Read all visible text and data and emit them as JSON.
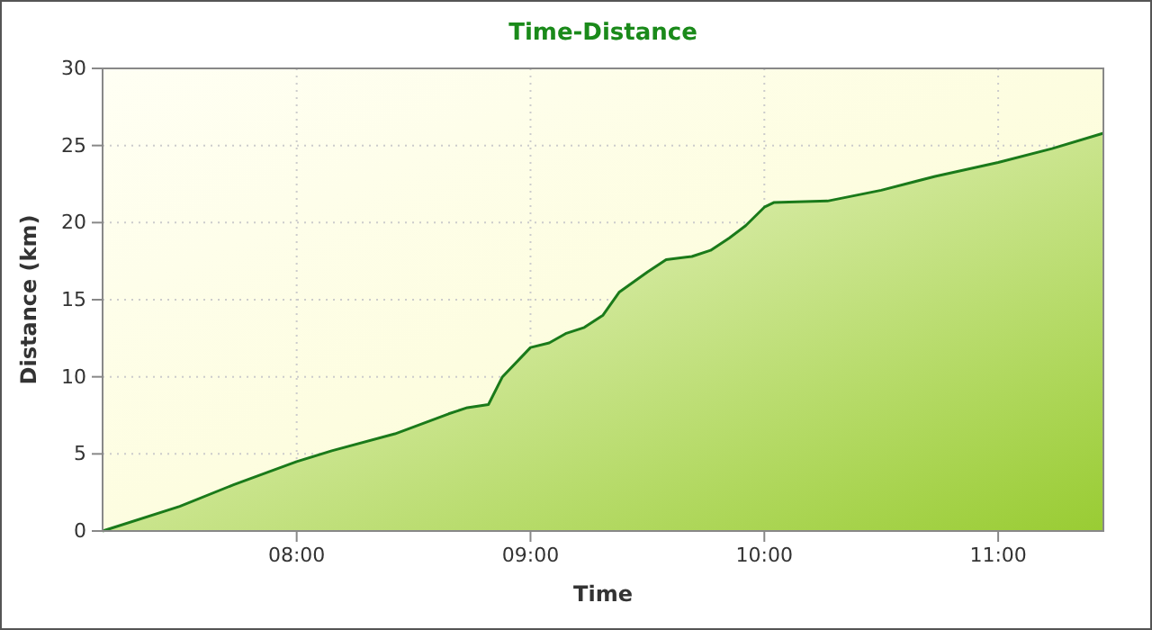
{
  "chart_data": {
    "type": "area",
    "title": "Time-Distance",
    "xlabel": "Time",
    "ylabel": "Distance (km)",
    "x": [
      7.17,
      7.5,
      7.73,
      8.0,
      8.15,
      8.42,
      8.65,
      8.73,
      8.82,
      8.88,
      9.0,
      9.08,
      9.15,
      9.23,
      9.31,
      9.38,
      9.5,
      9.58,
      9.69,
      9.77,
      9.85,
      9.92,
      10.0,
      10.04,
      10.27,
      10.5,
      10.73,
      11.0,
      11.23,
      11.45
    ],
    "series": [
      {
        "color": "#1a7a1a",
        "values": [
          0,
          1.6,
          3.0,
          4.5,
          5.2,
          6.3,
          7.6,
          8.0,
          8.2,
          10.0,
          11.9,
          12.2,
          12.8,
          13.2,
          14.0,
          15.5,
          16.8,
          17.6,
          17.8,
          18.2,
          19.0,
          19.8,
          21.0,
          21.3,
          21.4,
          22.1,
          23.0,
          23.9,
          24.8,
          25.8
        ]
      }
    ],
    "xlim": [
      7.17,
      11.45
    ],
    "xticks": [
      {
        "value": 8,
        "label": "08:00"
      },
      {
        "value": 9,
        "label": "09:00"
      },
      {
        "value": 10,
        "label": "10:00"
      },
      {
        "value": 11,
        "label": "11:00"
      }
    ],
    "ylim": [
      0,
      30
    ],
    "yticks": [
      0,
      5,
      10,
      15,
      20,
      25,
      30
    ],
    "grid": true
  }
}
